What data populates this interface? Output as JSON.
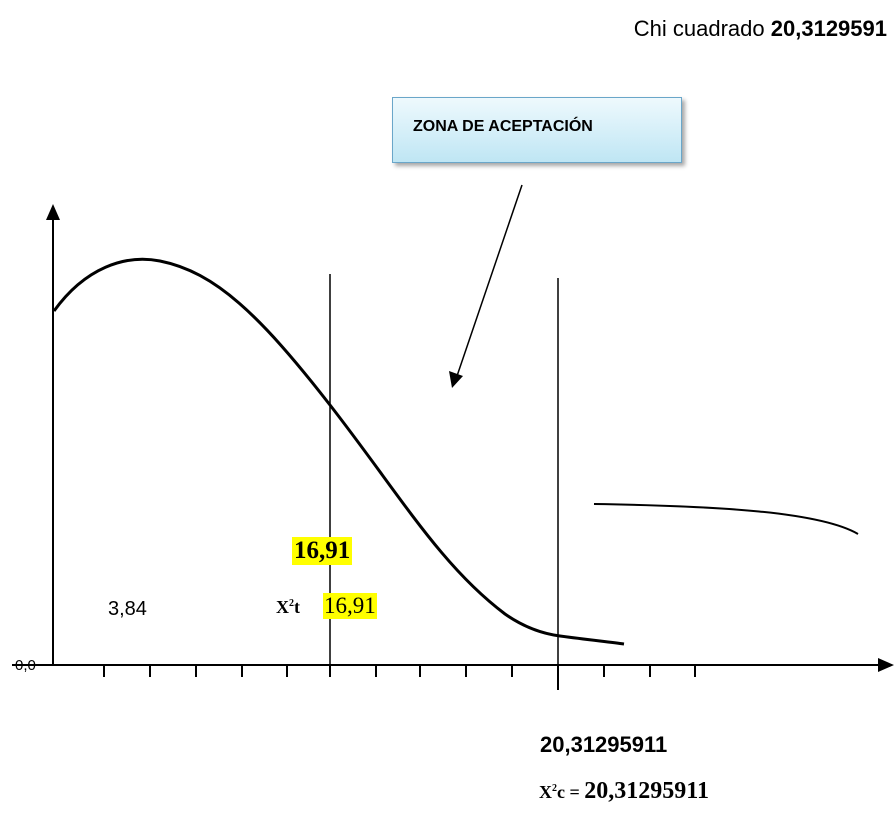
{
  "header": {
    "prefix": "Chi cuadrado",
    "value": "20,3129591"
  },
  "zone": {
    "label": "ZONA DE ACEPTACIÓN"
  },
  "labels": {
    "left_value": "3,84",
    "x2t_symbol": "X",
    "x2t_sup": "2",
    "x2t_suffix": "t",
    "x2t_value": "16,91",
    "bold_value": "16,91",
    "origin": "0,0",
    "critical_value": "20,31295911",
    "x2c_symbol": "X",
    "x2c_sup": "2",
    "x2c_suffix": "c",
    "x2c_eq": "=",
    "x2c_value": "20,31295911"
  },
  "colors": {
    "highlight": "#ffff00",
    "zone_border": "#6aa6c9"
  }
}
